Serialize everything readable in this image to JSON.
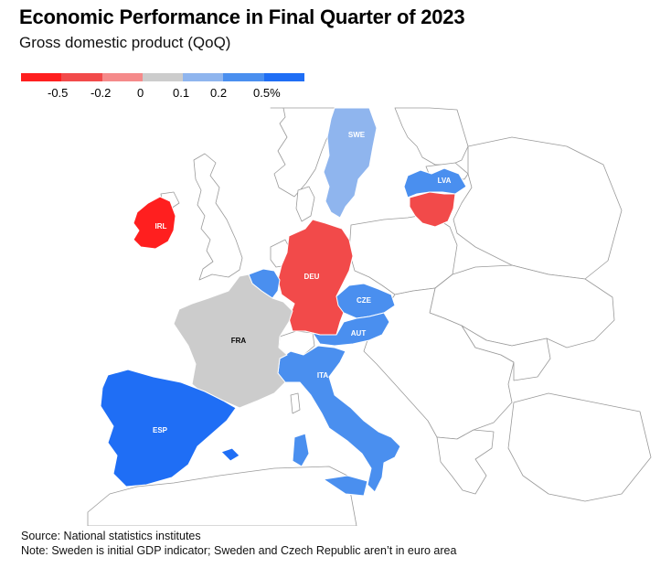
{
  "title": "Economic Performance in Final Quarter of 2023",
  "subtitle": "Gross domestic product (QoQ)",
  "legend": {
    "bins": [
      "#ff1f1f",
      "#f24a4a",
      "#f58a8a",
      "#cccccc",
      "#8fb5ee",
      "#4a8fef",
      "#1f6ef5"
    ],
    "labels": [
      "-0.5",
      "-0.2",
      "0",
      "0.1",
      "0.2",
      "0.5%"
    ]
  },
  "countries": {
    "irl": {
      "label": "IRL",
      "color": "#ff1f1f"
    },
    "deu": {
      "label": "DEU",
      "color": "#f24a4a"
    },
    "ltu": {
      "label": "",
      "color": "#f24a4a"
    },
    "fra": {
      "label": "FRA",
      "color": "#cccccc"
    },
    "swe": {
      "label": "SWE",
      "color": "#8fb5ee"
    },
    "lva": {
      "label": "LVA",
      "color": "#4a8fef"
    },
    "cze": {
      "label": "CZE",
      "color": "#4a8fef"
    },
    "aut": {
      "label": "AUT",
      "color": "#4a8fef"
    },
    "ita": {
      "label": "ITA",
      "color": "#4a8fef"
    },
    "bel": {
      "label": "",
      "color": "#4a8fef"
    },
    "esp": {
      "label": "ESP",
      "color": "#1f6ef5"
    }
  },
  "footer": {
    "source": "Source: National statistics institutes",
    "note": "Note: Sweden is initial GDP indicator; Sweden and Czech Republic aren’t in euro area"
  }
}
